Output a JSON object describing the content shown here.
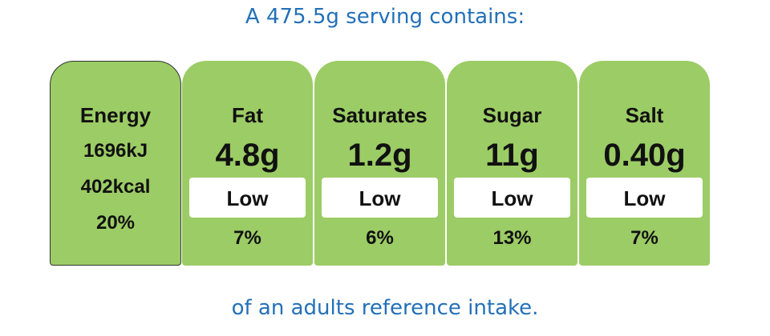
{
  "header": {
    "title": "A 475.5g serving contains:"
  },
  "energy": {
    "label": "Energy",
    "kj": "1696kJ",
    "kcal": "402kcal",
    "percent": "20%"
  },
  "nutrients": [
    {
      "name": "Fat",
      "amount": "4.8g",
      "level": "Low",
      "percent": "7%"
    },
    {
      "name": "Saturates",
      "amount": "1.2g",
      "level": "Low",
      "percent": "6%"
    },
    {
      "name": "Sugar",
      "amount": "11g",
      "level": "Low",
      "percent": "13%"
    },
    {
      "name": "Salt",
      "amount": "0.40g",
      "level": "Low",
      "percent": "7%"
    }
  ],
  "footer": "of an adults reference intake."
}
